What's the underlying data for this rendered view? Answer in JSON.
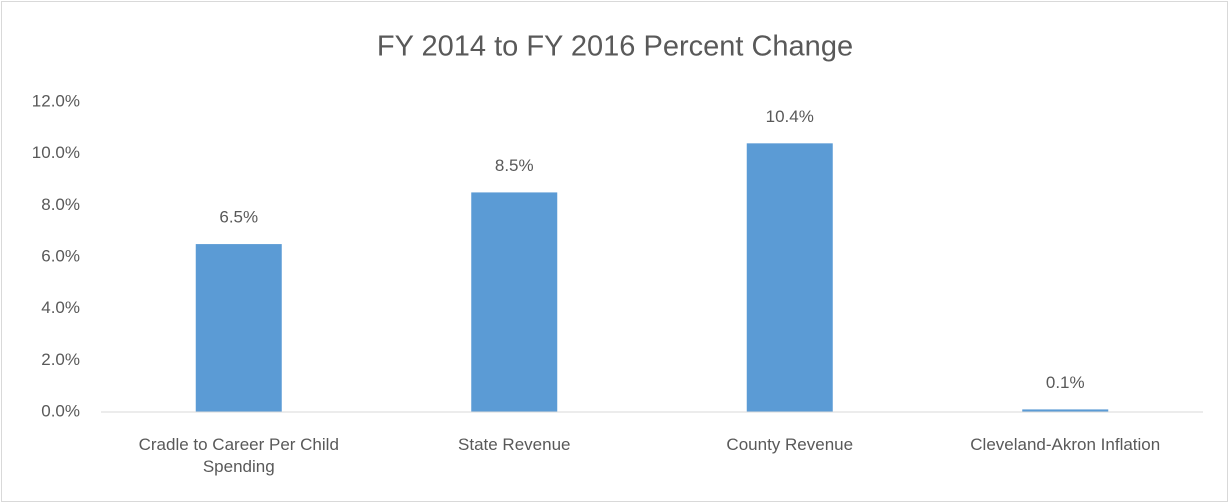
{
  "chart_data": {
    "type": "bar",
    "title": "FY 2014 to FY 2016 Percent Change",
    "categories": [
      "Cradle to Career Per Child Spending",
      "State Revenue",
      "County Revenue",
      "Cleveland-Akron Inflation"
    ],
    "values": [
      6.5,
      8.5,
      10.4,
      0.1
    ],
    "value_labels": [
      "6.5%",
      "8.5%",
      "10.4%",
      "0.1%"
    ],
    "color": "#5b9bd5",
    "ylim": [
      0,
      12
    ],
    "yticks": [
      {
        "value": 0,
        "label": "0.0%"
      },
      {
        "value": 2,
        "label": "2.0%"
      },
      {
        "value": 4,
        "label": "4.0%"
      },
      {
        "value": 6,
        "label": "6.0%"
      },
      {
        "value": 8,
        "label": "8.0%"
      },
      {
        "value": 10,
        "label": "10.0%"
      },
      {
        "value": 12,
        "label": "12.0%"
      }
    ],
    "grid": false
  }
}
